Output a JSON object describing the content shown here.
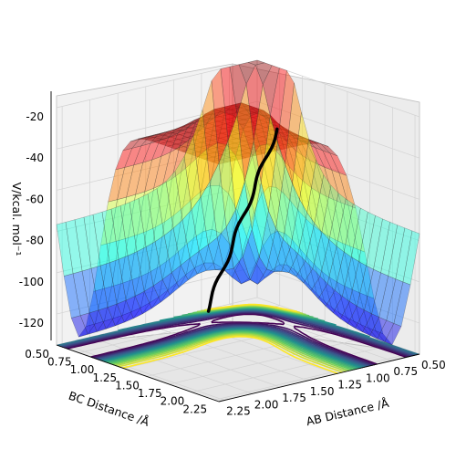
{
  "chart_data": {
    "type": "surface",
    "projection": "3d",
    "title": "",
    "xlabel": "AB Distance /Å",
    "ylabel": "BC Distance /Å",
    "zlabel": "V/kcal. mol⁻¹",
    "x_ticks": [
      "0.50",
      "0.75",
      "1.00",
      "1.25",
      "1.50",
      "1.75",
      "2.00",
      "2.25"
    ],
    "y_ticks": [
      "0.50",
      "0.75",
      "1.00",
      "1.25",
      "1.50",
      "1.75",
      "2.00",
      "2.25"
    ],
    "z_ticks": [
      "-20",
      "-40",
      "-60",
      "-80",
      "-100",
      "-120"
    ],
    "xlim": [
      0.5,
      2.3
    ],
    "ylim": [
      0.5,
      2.3
    ],
    "zlim": [
      -135,
      -20
    ],
    "colormap_surface": "jet",
    "colormap_contour": "viridis",
    "series": [
      {
        "kind": "surface",
        "values": "V(AB, BC) potential energy surface"
      },
      {
        "kind": "contour",
        "levels": [
          -110,
          -105,
          -100,
          -95,
          -90,
          -85,
          -80,
          -75,
          -70,
          -65,
          -60,
          -55,
          -50,
          -45,
          -40,
          -35,
          -30
        ]
      },
      {
        "kind": "trajectory",
        "color": "#000000"
      }
    ],
    "grid": true
  }
}
